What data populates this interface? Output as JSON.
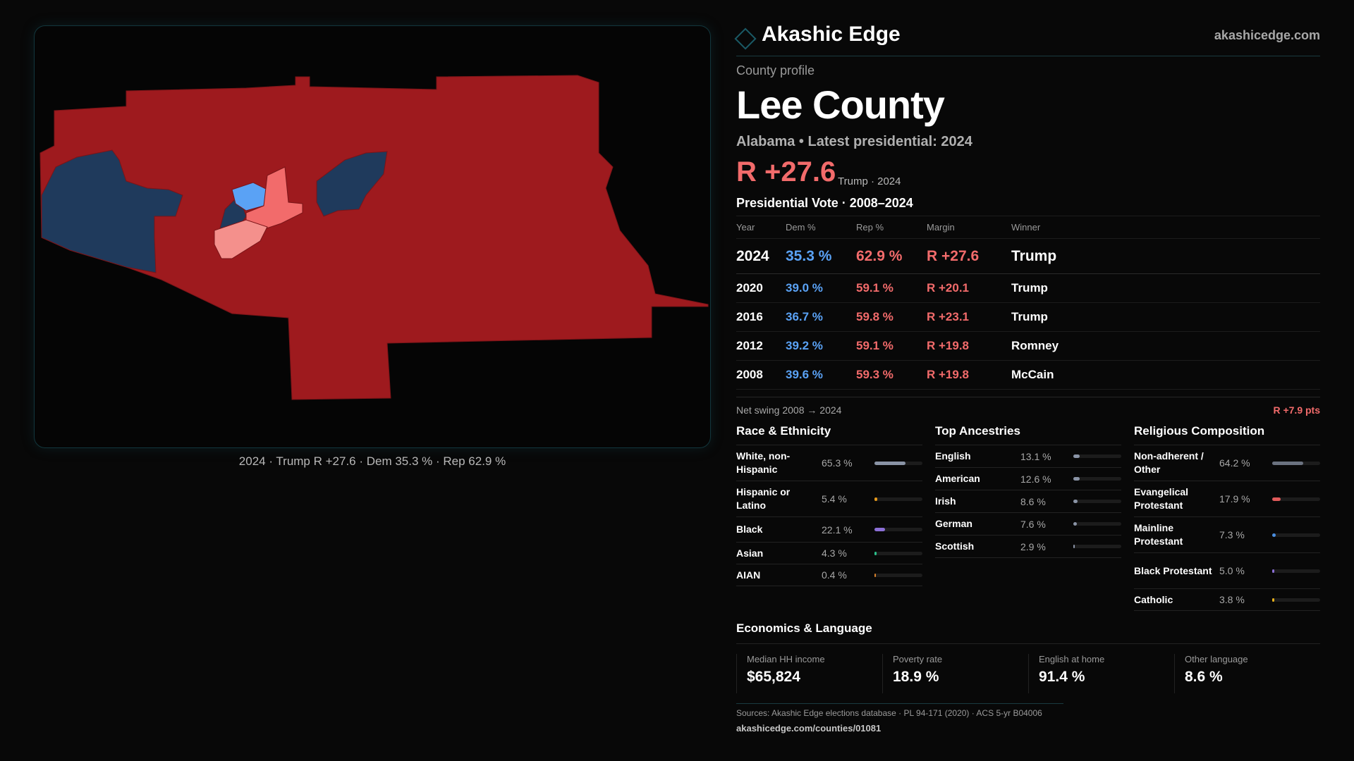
{
  "header": {
    "brand": "Akashic Edge",
    "site": "akashicedge.com",
    "logo_icon": "diamond-icon"
  },
  "profile": {
    "kicker": "County profile",
    "title": "Lee County",
    "subtitle": "Alabama • Latest presidential: 2024",
    "headline_margin": "R +27.6",
    "headline_sub": "Trump · 2024"
  },
  "colors": {
    "rep": "#f26b6b",
    "dem": "#5aa2f5",
    "rep_strong": "#9e1a1e",
    "dem_strong": "#1f3a5c"
  },
  "map": {
    "caption": "2024 · Trump R +27.6 · Dem 35.3 % · Rep 62.9 %"
  },
  "vote": {
    "title": "Presidential Vote · 2008–2024",
    "columns": [
      "Year",
      "Dem %",
      "Rep %",
      "Margin",
      "Winner"
    ],
    "rows": [
      {
        "year": "2024",
        "dem": "35.3 %",
        "rep": "62.9 %",
        "margin": "R +27.6",
        "winner": "Trump"
      },
      {
        "year": "2020",
        "dem": "39.0 %",
        "rep": "59.1 %",
        "margin": "R +20.1",
        "winner": "Trump"
      },
      {
        "year": "2016",
        "dem": "36.7 %",
        "rep": "59.8 %",
        "margin": "R +23.1",
        "winner": "Trump"
      },
      {
        "year": "2012",
        "dem": "39.2 %",
        "rep": "59.1 %",
        "margin": "R +19.8",
        "winner": "Romney"
      },
      {
        "year": "2008",
        "dem": "39.6 %",
        "rep": "59.3 %",
        "margin": "R +19.8",
        "winner": "McCain"
      }
    ],
    "swing_label": "Net swing 2008 → 2024",
    "swing_value": "R +7.9 pts"
  },
  "race": {
    "title": "Race & Ethnicity",
    "items": [
      {
        "label": "White, non-Hispanic",
        "value": "65.3 %",
        "pct": 65.3,
        "color": "#8a94a6"
      },
      {
        "label": "Hispanic or Latino",
        "value": "5.4 %",
        "pct": 5.4,
        "color": "#e69a1c"
      },
      {
        "label": "Black",
        "value": "22.1 %",
        "pct": 22.1,
        "color": "#8b6fd6"
      },
      {
        "label": "Asian",
        "value": "4.3 %",
        "pct": 4.3,
        "color": "#2bbf8a"
      },
      {
        "label": "AIAN",
        "value": "0.4 %",
        "pct": 0.4,
        "color": "#d9822b"
      }
    ]
  },
  "ancestry": {
    "title": "Top Ancestries",
    "items": [
      {
        "label": "English",
        "value": "13.1 %",
        "pct": 13.1,
        "color": "#8a94a6"
      },
      {
        "label": "American",
        "value": "12.6 %",
        "pct": 12.6,
        "color": "#8a94a6"
      },
      {
        "label": "Irish",
        "value": "8.6 %",
        "pct": 8.6,
        "color": "#8a94a6"
      },
      {
        "label": "German",
        "value": "7.6 %",
        "pct": 7.6,
        "color": "#8a94a6"
      },
      {
        "label": "Scottish",
        "value": "2.9 %",
        "pct": 2.9,
        "color": "#8a94a6"
      }
    ]
  },
  "religion": {
    "title": "Religious Composition",
    "items": [
      {
        "label": "Non-adherent / Other",
        "value": "64.2 %",
        "pct": 64.2,
        "color": "#6b7280"
      },
      {
        "label": "Evangelical Protestant",
        "value": "17.9 %",
        "pct": 17.9,
        "color": "#e05a5a"
      },
      {
        "label": "Mainline Protestant",
        "value": "7.3 %",
        "pct": 7.3,
        "color": "#4a8ee0"
      },
      {
        "label": "Black Protestant",
        "value": "5.0 %",
        "pct": 5.0,
        "color": "#8b6fd6"
      },
      {
        "label": "Catholic",
        "value": "3.8 %",
        "pct": 3.8,
        "color": "#e6b01c"
      }
    ]
  },
  "economics": {
    "title": "Economics & Language",
    "stats": [
      {
        "label": "Median HH income",
        "value": "$65,824"
      },
      {
        "label": "Poverty rate",
        "value": "18.9 %"
      },
      {
        "label": "English at home",
        "value": "91.4 %"
      },
      {
        "label": "Other language",
        "value": "8.6 %"
      }
    ]
  },
  "footer": {
    "sources": "Sources: Akashic Edge elections database · PL 94-171 (2020) · ACS 5-yr B04006",
    "url": "akashicedge.com/counties/01081"
  }
}
